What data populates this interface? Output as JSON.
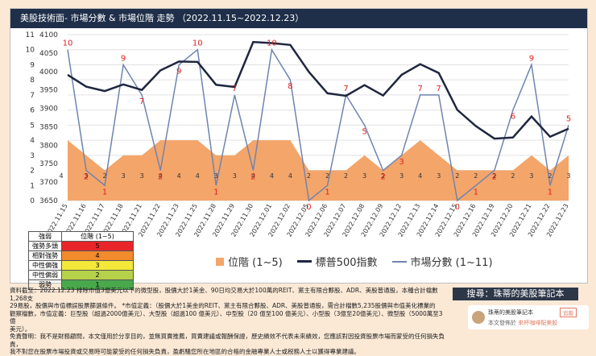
{
  "title": "美股技術面- 市場分數 & 市場位階 走勢 （2022.11.15~2022.12.23）",
  "chart_data": {
    "type": "line",
    "title": "美股技術面- 市場分數 & 市場位階 走勢 （2022.11.15~2022.12.23）",
    "categories": [
      "2022.11.15",
      "2022.11.16",
      "2022.11.17",
      "2022.11.18",
      "2022.11.21",
      "2022.11.22",
      "2022.11.23",
      "2022.11.25",
      "2022.11.28",
      "2022.11.29",
      "2022.11.30",
      "2022.12.01",
      "2022.12.02",
      "2022.12.05",
      "2022.12.06",
      "2022.12.07",
      "2022.12.08",
      "2022.12.09",
      "2022.12.12",
      "2022.12.13",
      "2022.12.14",
      "2022.12.15",
      "2022.12.16",
      "2022.12.19",
      "2022.12.20",
      "2022.12.21",
      "2022.12.22",
      "2022.12.23"
    ],
    "left_axis": {
      "min": 0,
      "max": 11,
      "ticks": [
        0,
        1,
        2,
        3,
        4,
        5,
        6,
        7,
        8,
        9,
        10,
        11
      ]
    },
    "right_axis": {
      "min": 3650,
      "max": 4100,
      "ticks": [
        3650,
        3700,
        3750,
        3800,
        3850,
        3900,
        3950,
        4000,
        4050,
        4100
      ]
    },
    "grid": true,
    "legend_position": "bottom",
    "series": [
      {
        "name": "位階 (1~5)",
        "type": "area",
        "axis": "left",
        "color": "#f4a56a",
        "values": [
          4,
          3,
          2,
          3,
          3,
          4,
          4,
          4,
          3,
          3,
          4,
          4,
          4,
          2,
          2,
          2,
          3,
          2,
          3,
          4,
          3,
          2,
          2,
          2,
          2,
          3,
          2,
          3
        ]
      },
      {
        "name": "標普500指數",
        "type": "line",
        "axis": "right",
        "color": "#1f2640",
        "values": [
          3991,
          3959,
          3947,
          3965,
          3950,
          4003,
          4027,
          4026,
          3964,
          3958,
          4080,
          4077,
          4072,
          3999,
          3941,
          3934,
          3963,
          3935,
          3991,
          4020,
          3996,
          3896,
          3852,
          3818,
          3821,
          3878,
          3823,
          3845
        ]
      },
      {
        "name": "市場分數 (1~11)",
        "type": "line",
        "axis": "left",
        "color": "#6f84b0",
        "values": [
          10,
          2,
          1,
          9,
          7,
          2,
          9,
          10,
          1,
          7,
          2,
          10,
          8,
          0,
          1,
          7,
          5,
          2,
          3,
          7,
          7,
          0,
          1,
          2,
          6,
          9,
          1,
          5
        ]
      }
    ],
    "data_labels": {
      "position": [
        4,
        3,
        2,
        3,
        3,
        4,
        4,
        4,
        3,
        3,
        4,
        4,
        4,
        2,
        2,
        2,
        3,
        2,
        3,
        4,
        3,
        2,
        2,
        2,
        2,
        3,
        2,
        3
      ],
      "score": [
        10,
        2,
        1,
        9,
        7,
        2,
        9,
        10,
        1,
        7,
        2,
        10,
        8,
        0,
        1,
        7,
        5,
        2,
        3,
        7,
        7,
        0,
        1,
        2,
        6,
        9,
        1,
        5
      ]
    }
  },
  "position_legend": {
    "headers": [
      "強弱",
      "位階 (1~5)"
    ],
    "rows": [
      {
        "label": "強勢多頭",
        "value": "5",
        "color": "#e8262a"
      },
      {
        "label": "相對強勢",
        "value": "4",
        "color": "#f28a2e"
      },
      {
        "label": "中性偏強",
        "value": "3",
        "color": "#f4e93a"
      },
      {
        "label": "中性偏弱",
        "value": "2",
        "color": "#b6d14a"
      },
      {
        "label": "弱勢",
        "value": "1",
        "color": "#4aa84c"
      }
    ]
  },
  "footer": {
    "line1": "資料截至：2022.12.23 排除市值3億美元以下的微型股，股價大於1美金、90日均交易大於100萬的REIT、黨主有限合夥股、ADR、美股普通股，本種合計檔數1,268支",
    "line2": "29易股，股價與市值標誤股票篩選條件。 *市值定義：（股價大於1美金的REIT、黨主有限合夥股、ADR、美股普通股，需合計檔數5,235股價與市值美化標業的",
    "line3": "觀察檔數，市值定義：巨型股（超過2000億美元）、大型股（超過100 億美元）、中型股（20 億至100 億美元）、小型股（3億至20億美元）、微型股（5000萬至3 億",
    "line4": "美元）。",
    "line5": "免責聲明：我不是財務顧問，本文僅用於分享目的，並無買賣推薦，買賣建議或報酬保證，歷史績效不代表未來績效，您應該對因投資股票市場而蒙受的任何損失負責，",
    "line6": "我不對您在股票市場投資或交易時可能蒙受的任何損失負責，盈虧騷您所在地區的合格的金融專業人士或税務人士以獲得專業建議。"
  },
  "search_banner": "搜尋：珠蒂的美股筆記本",
  "brand": {
    "name": "珠蒂的美股筆記本",
    "follow": "追蹤",
    "sub_prefix": "本文發佈於",
    "sub_link": "來杯咖啡配美股"
  },
  "icons": {
    "avatar": "avatar-icon"
  }
}
